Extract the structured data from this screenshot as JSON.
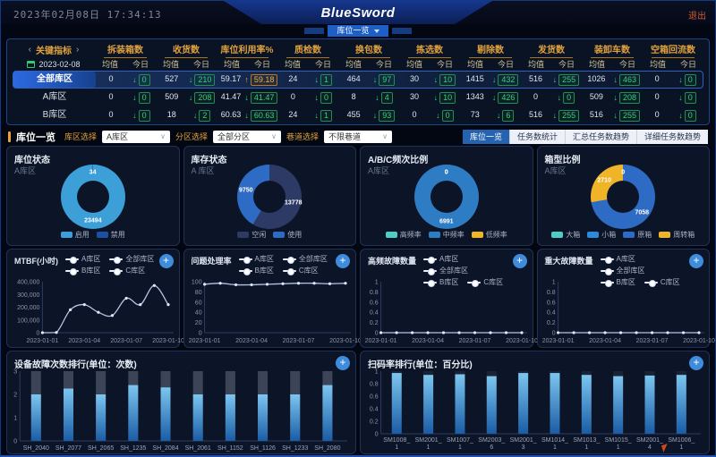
{
  "header": {
    "clock": "2023年02月08日 17:34:13",
    "logo": "BlueSword",
    "logout": "退出",
    "view_tab": "库位一览"
  },
  "kpi_table": {
    "section_title": "关键指标",
    "date": "2023-02-08",
    "sub_avg": "均值",
    "sub_today": "今日",
    "metrics": [
      "拆装箱数",
      "收货数",
      "库位利用率%",
      "质检数",
      "换包数",
      "拣选数",
      "剔除数",
      "发货数",
      "装卸车数",
      "空箱回流数"
    ],
    "rows": [
      {
        "label": "全部库区",
        "active": true,
        "cells": [
          {
            "avg": "0",
            "today": "0",
            "dir": "down"
          },
          {
            "avg": "527",
            "today": "210",
            "dir": "down"
          },
          {
            "avg": "59.17",
            "today": "59.18",
            "dir": "up"
          },
          {
            "avg": "24",
            "today": "1",
            "dir": "down"
          },
          {
            "avg": "464",
            "today": "97",
            "dir": "down"
          },
          {
            "avg": "30",
            "today": "10",
            "dir": "down"
          },
          {
            "avg": "1415",
            "today": "432",
            "dir": "down"
          },
          {
            "avg": "516",
            "today": "255",
            "dir": "down"
          },
          {
            "avg": "1026",
            "today": "463",
            "dir": "down"
          },
          {
            "avg": "0",
            "today": "0",
            "dir": "down"
          }
        ]
      },
      {
        "label": "A库区",
        "active": false,
        "cells": [
          {
            "avg": "0",
            "today": "0",
            "dir": "down"
          },
          {
            "avg": "509",
            "today": "208",
            "dir": "down"
          },
          {
            "avg": "41.47",
            "today": "41.47",
            "dir": "down"
          },
          {
            "avg": "0",
            "today": "0",
            "dir": "down"
          },
          {
            "avg": "8",
            "today": "4",
            "dir": "down"
          },
          {
            "avg": "30",
            "today": "10",
            "dir": "down"
          },
          {
            "avg": "1343",
            "today": "426",
            "dir": "down"
          },
          {
            "avg": "0",
            "today": "0",
            "dir": "down"
          },
          {
            "avg": "509",
            "today": "208",
            "dir": "down"
          },
          {
            "avg": "0",
            "today": "0",
            "dir": "down"
          }
        ]
      },
      {
        "label": "B库区",
        "active": false,
        "cells": [
          {
            "avg": "0",
            "today": "0",
            "dir": "down"
          },
          {
            "avg": "18",
            "today": "2",
            "dir": "down"
          },
          {
            "avg": "60.63",
            "today": "60.63",
            "dir": "down"
          },
          {
            "avg": "24",
            "today": "1",
            "dir": "down"
          },
          {
            "avg": "455",
            "today": "93",
            "dir": "down"
          },
          {
            "avg": "0",
            "today": "0",
            "dir": "down"
          },
          {
            "avg": "73",
            "today": "6",
            "dir": "down"
          },
          {
            "avg": "516",
            "today": "255",
            "dir": "down"
          },
          {
            "avg": "516",
            "today": "255",
            "dir": "down"
          },
          {
            "avg": "0",
            "today": "0",
            "dir": "down"
          }
        ]
      }
    ]
  },
  "filter_bar": {
    "title": "库位一览",
    "filters": [
      {
        "label": "库区选择",
        "value": "A库区"
      },
      {
        "label": "分区选择",
        "value": "全部分区"
      },
      {
        "label": "巷道选择",
        "value": "不限巷道"
      }
    ],
    "tabs": [
      {
        "label": "库位一览",
        "active": true
      },
      {
        "label": "任务数统计",
        "active": false
      },
      {
        "label": "汇总任务数趋势",
        "active": false
      },
      {
        "label": "详细任务数趋势",
        "active": false
      }
    ]
  },
  "chart_data": [
    {
      "id": "loc-status",
      "type": "pie",
      "title": "库位状态",
      "subtitle": "A库区",
      "slices": [
        {
          "name": "启用",
          "value": 23494,
          "color": "#3d9fd8"
        },
        {
          "name": "禁用",
          "value": 34,
          "color": "#1e4fa0"
        }
      ]
    },
    {
      "id": "inv-status",
      "type": "pie",
      "title": "库存状态",
      "subtitle": "A 库区",
      "slices": [
        {
          "name": "空闲",
          "value": 13778,
          "color": "#2d3a66"
        },
        {
          "name": "使用",
          "value": 9750,
          "color": "#2e6bc4"
        }
      ]
    },
    {
      "id": "abc-ratio",
      "type": "pie",
      "title": "A/B/C频次比例",
      "subtitle": "A库区",
      "slices": [
        {
          "name": "高频率",
          "value": 0,
          "color": "#4ecdc4"
        },
        {
          "name": "中频率",
          "value": 6991,
          "color": "#2e7cc4"
        },
        {
          "name": "低频率",
          "value": 0,
          "color": "#f0b429"
        }
      ]
    },
    {
      "id": "box-ratio",
      "type": "pie",
      "title": "箱型比例",
      "subtitle": "A库区",
      "slices": [
        {
          "name": "大箱",
          "value": 0,
          "color": "#4ecdc4"
        },
        {
          "name": "小箱",
          "value": 0,
          "color": "#2e8ad8"
        },
        {
          "name": "原箱",
          "value": 7058,
          "color": "#2e6bc4"
        },
        {
          "name": "周转箱",
          "value": 2710,
          "color": "#f0b429"
        }
      ]
    },
    {
      "id": "mtbf",
      "type": "line",
      "title": "MTBF(小时)",
      "legend": [
        "A库区",
        "全部库区",
        "B库区",
        "C库区"
      ],
      "x": [
        "2023-01-01",
        "2023-01-02",
        "2023-01-03",
        "2023-01-04",
        "2023-01-05",
        "2023-01-06",
        "2023-01-07",
        "2023-01-08",
        "2023-01-09",
        "2023-01-10"
      ],
      "x_tick_idx": [
        0,
        3,
        6,
        9
      ],
      "x_tick_labels": [
        "2023-01-01",
        "2023-01-04",
        "2023-01-07",
        "2023-01-10"
      ],
      "series": [
        {
          "name": "A库区",
          "values": [
            0,
            2000,
            180000,
            220000,
            160000,
            135000,
            270000,
            220000,
            370000,
            220000
          ]
        }
      ],
      "ylim": [
        0,
        400000
      ],
      "y_ticks": [
        0,
        100000,
        200000,
        300000,
        400000
      ],
      "y_tick_labels": [
        "0",
        "100,000",
        "200,000",
        "300,000",
        "400,000"
      ]
    },
    {
      "id": "issue-rate",
      "type": "line",
      "title": "问题处理率",
      "legend": [
        "A库区",
        "全部库区",
        "B库区",
        "C库区"
      ],
      "x": [
        "2023-01-01",
        "2023-01-02",
        "2023-01-03",
        "2023-01-04",
        "2023-01-05",
        "2023-01-06",
        "2023-01-07",
        "2023-01-08",
        "2023-01-09",
        "2023-01-10"
      ],
      "x_tick_idx": [
        0,
        3,
        6,
        9
      ],
      "x_tick_labels": [
        "2023-01-01",
        "2023-01-04",
        "2023-01-07",
        "2023-01-10"
      ],
      "series": [
        {
          "name": "A库区",
          "values": [
            95,
            97,
            94,
            94,
            95,
            96,
            97,
            97,
            96,
            97
          ]
        }
      ],
      "ylim": [
        0,
        100
      ],
      "y_ticks": [
        0,
        20,
        40,
        60,
        80,
        100
      ],
      "y_tick_labels": [
        "0",
        "20",
        "40",
        "60",
        "80",
        "100"
      ]
    },
    {
      "id": "hf-fault",
      "type": "line",
      "title": "高频故障数量",
      "legend": [
        "A库区",
        "全部库区",
        "B库区",
        "C库区"
      ],
      "x": [
        "2023-01-01",
        "2023-01-02",
        "2023-01-03",
        "2023-01-04",
        "2023-01-05",
        "2023-01-06",
        "2023-01-07",
        "2023-01-08",
        "2023-01-09",
        "2023-01-10"
      ],
      "x_tick_idx": [
        0,
        3,
        6,
        9
      ],
      "x_tick_labels": [
        "2023-01-01",
        "2023-01-04",
        "2023-01-07",
        "2023-01-10"
      ],
      "series": [
        {
          "name": "A库区",
          "values": [
            0,
            0,
            0,
            0,
            0,
            0,
            0,
            0,
            0,
            0
          ]
        }
      ],
      "ylim": [
        0,
        1
      ],
      "y_ticks": [
        0,
        0.2,
        0.4,
        0.6,
        0.8,
        1
      ],
      "y_tick_labels": [
        "0",
        "0.2",
        "0.4",
        "0.6",
        "0.8",
        "1"
      ]
    },
    {
      "id": "major-fault",
      "type": "line",
      "title": "重大故障数量",
      "legend": [
        "A库区",
        "全部库区",
        "B库区",
        "C库区"
      ],
      "x": [
        "2023-01-01",
        "2023-01-02",
        "2023-01-03",
        "2023-01-04",
        "2023-01-05",
        "2023-01-06",
        "2023-01-07",
        "2023-01-08",
        "2023-01-09",
        "2023-01-10"
      ],
      "x_tick_idx": [
        0,
        3,
        6,
        9
      ],
      "x_tick_labels": [
        "2023-01-01",
        "2023-01-04",
        "2023-01-07",
        "2023-01-10"
      ],
      "series": [
        {
          "name": "A库区",
          "values": [
            0,
            0,
            0,
            0,
            0,
            0,
            0,
            0,
            0,
            0
          ]
        }
      ],
      "ylim": [
        0,
        1
      ],
      "y_ticks": [
        0,
        0.2,
        0.4,
        0.6,
        0.8,
        1
      ],
      "y_tick_labels": [
        "0",
        "0.2",
        "0.4",
        "0.6",
        "0.8",
        "1"
      ]
    },
    {
      "id": "fault-rank",
      "type": "bar",
      "title": "设备故障次数排行(单位：次数)",
      "categories": [
        "SH_2040",
        "SH_2077",
        "SH_2065",
        "SH_1235",
        "SH_2084",
        "SH_2061",
        "SH_1152",
        "SH_1126",
        "SH_1233",
        "SH_2080"
      ],
      "values": [
        2.0,
        2.25,
        2.0,
        2.4,
        2.3,
        2.0,
        2.0,
        2.0,
        2.0,
        2.4
      ],
      "ylim": [
        0,
        3
      ],
      "y_ticks": [
        0,
        1,
        2,
        3
      ],
      "y_tick_labels": [
        "0",
        "1",
        "2",
        "3"
      ],
      "track_color": "#3c4557"
    },
    {
      "id": "scan-rank",
      "type": "bar",
      "title": "扫码率排行(单位：百分比)",
      "categories": [
        "SM1008_1",
        "SM2001_1",
        "SM1007_1",
        "SM2003_6",
        "SM2001_3",
        "SM1014_1",
        "SM1013_1",
        "SM1015_1",
        "SM2001_4",
        "SM1006_1"
      ],
      "values": [
        0.97,
        0.94,
        0.95,
        0.92,
        0.97,
        0.97,
        0.94,
        0.92,
        0.93,
        0.94
      ],
      "ylim": [
        0,
        1
      ],
      "y_ticks": [
        0,
        0.2,
        0.4,
        0.6,
        0.8,
        1
      ],
      "y_tick_labels": [
        "0",
        "0.2",
        "0.4",
        "0.6",
        "0.8",
        "1"
      ],
      "two_line_labels": true,
      "track_color": "#1a2334"
    }
  ],
  "colors": {
    "accent_orange": "#e8a33d",
    "good_green": "#2ecc71",
    "tab_blue": "#2563b0",
    "line_color": "#b6c2e4",
    "bar_top": "#7cc6f0",
    "bar_bottom": "#1a5ca6"
  }
}
